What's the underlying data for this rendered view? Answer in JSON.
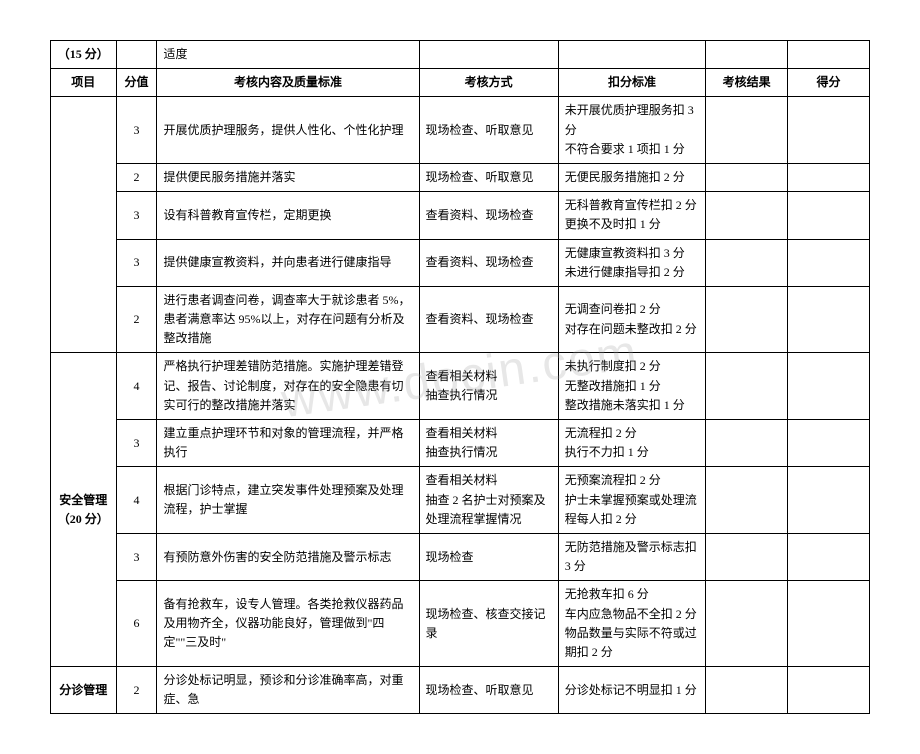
{
  "watermark": "www.docin.com",
  "topRow": {
    "project": "（15 分）",
    "content_suffix": "适度"
  },
  "header": {
    "project": "项目",
    "score": "分值",
    "content": "考核内容及质量标准",
    "method": "考核方式",
    "deduct": "扣分标准",
    "result": "考核结果",
    "final": "得分"
  },
  "rows": [
    {
      "score": "3",
      "content": "开展优质护理服务，提供人性化、个性化护理",
      "method": "现场检查、听取意见",
      "deduct": "未开展优质护理服务扣 3 分\n不符合要求 1 项扣 1 分"
    },
    {
      "score": "2",
      "content": "提供便民服务措施并落实",
      "method": "现场检查、听取意见",
      "deduct": "无便民服务措施扣 2 分"
    },
    {
      "score": "3",
      "content": "设有科普教育宣传栏，定期更换",
      "method": "查看资料、现场检查",
      "deduct": "无科普教育宣传栏扣 2 分\n更换不及时扣 1 分"
    },
    {
      "score": "3",
      "content": "提供健康宣教资料，并向患者进行健康指导",
      "method": "查看资料、现场检查",
      "deduct": "无健康宣教资料扣 3 分\n未进行健康指导扣 2 分"
    },
    {
      "score": "2",
      "content": "进行患者调查问卷，调查率大于就诊患者 5%，患者满意率达 95%以上，对存在问题有分析及整改措施",
      "method": "查看资料、现场检查",
      "deduct": "无调查问卷扣 2 分\n对存在问题未整改扣 2 分"
    }
  ],
  "safety": {
    "project": "安全管理\n（20 分）",
    "rows": [
      {
        "score": "4",
        "content": "严格执行护理差错防范措施。实施护理差错登记、报告、讨论制度，对存在的安全隐患有切实可行的整改措施并落实",
        "method": "查看相关材料\n抽查执行情况",
        "deduct": "未执行制度扣 2 分\n无整改措施扣 1 分\n整改措施未落实扣 1 分"
      },
      {
        "score": "3",
        "content": "建立重点护理环节和对象的管理流程，并严格执行",
        "method": "查看相关材料\n抽查执行情况",
        "deduct": "无流程扣 2 分\n执行不力扣 1 分"
      },
      {
        "score": "4",
        "content": "根据门诊特点，建立突发事件处理预案及处理流程，护士掌握",
        "method": "查看相关材料\n抽查 2 名护士对预案及处理流程掌握情况",
        "deduct": "无预案流程扣 2 分\n护士未掌握预案或处理流程每人扣 2 分"
      },
      {
        "score": "3",
        "content": "有预防意外伤害的安全防范措施及警示标志",
        "method": "现场检查",
        "deduct": "无防范措施及警示标志扣 3 分"
      },
      {
        "score": "6",
        "content": "备有抢救车，设专人管理。各类抢救仪器药品及用物齐全，仪器功能良好，管理做到\"四定\"\"三及时\"",
        "method": "现场检查、核查交接记录",
        "deduct": "无抢救车扣 6 分\n车内应急物品不全扣 2 分\n物品数量与实际不符或过期扣 2 分"
      }
    ]
  },
  "triage": {
    "project": "分诊管理",
    "rows": [
      {
        "score": "2",
        "content": "分诊处标记明显，预诊和分诊准确率高，对重症、急",
        "method": "现场检查、听取意见",
        "deduct": "分诊处标记不明显扣 1 分"
      }
    ]
  }
}
